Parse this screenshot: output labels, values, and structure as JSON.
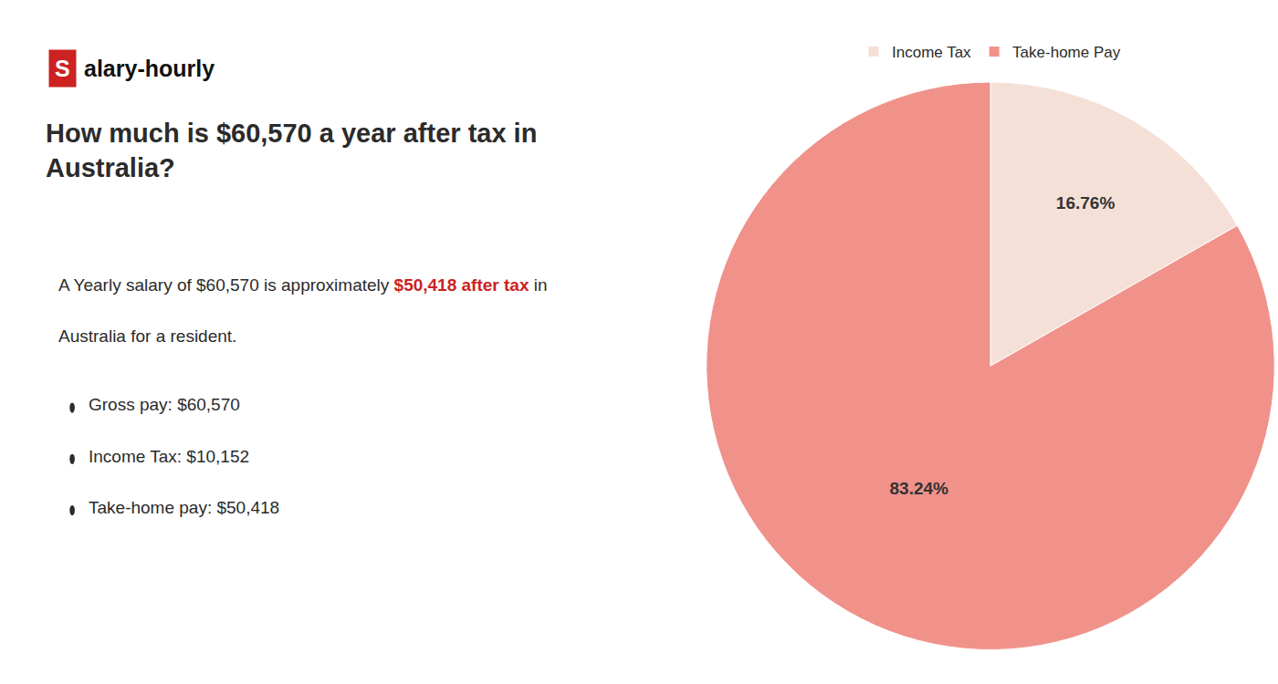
{
  "chart_data": {
    "type": "pie",
    "title": "How much is $60,570 a year after tax in\nAustralia?",
    "logo": [
      {
        "text": "S",
        "color": "#ffffff",
        "background": "#cc2222"
      },
      {
        "text": "alary-hourly"
      }
    ],
    "annotations": [
      {
        "parts": [
          {
            "text": "A Yearly salary of $60,570 is approximately "
          },
          {
            "text": "$50,418 after tax",
            "color": "#cc2222"
          },
          {
            "text": " in"
          }
        ]
      },
      {
        "text": "Australia for a resident."
      }
    ],
    "bullets": [
      "Gross pay: $60,570",
      "Income Tax: $10,152",
      "Take-home pay: $50,418"
    ],
    "categories": [
      "Income Tax",
      "Take-home Pay"
    ],
    "values": [
      16.76,
      83.24
    ],
    "value_labels": [
      "16.76%",
      "83.24%"
    ],
    "colors": [
      "#f5e0d8",
      "#f0928a"
    ],
    "data_labels": true,
    "legend": "top"
  }
}
